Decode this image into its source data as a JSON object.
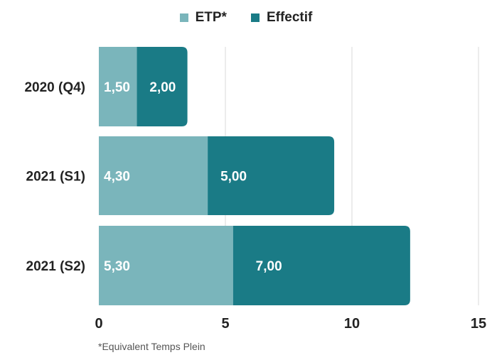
{
  "chart_data": {
    "type": "bar",
    "orientation": "horizontal",
    "stacked": true,
    "categories": [
      "2020 (Q4)",
      "2021 (S1)",
      "2021 (S2)"
    ],
    "series": [
      {
        "name": "ETP*",
        "values": [
          1.5,
          4.3,
          5.3
        ],
        "labels": [
          "1,50",
          "4,30",
          "5,30"
        ],
        "color": "#7ab5bb"
      },
      {
        "name": "Effectif",
        "values": [
          2.0,
          5.0,
          7.0
        ],
        "labels": [
          "2,00",
          "5,00",
          "7,00"
        ],
        "color": "#1a7b86"
      }
    ],
    "xlim": [
      0,
      15
    ],
    "xticks": [
      "0",
      "5",
      "10",
      "15"
    ],
    "grid": true,
    "legend_position": "top-center"
  },
  "footnote": "*Equivalent Temps Plein"
}
